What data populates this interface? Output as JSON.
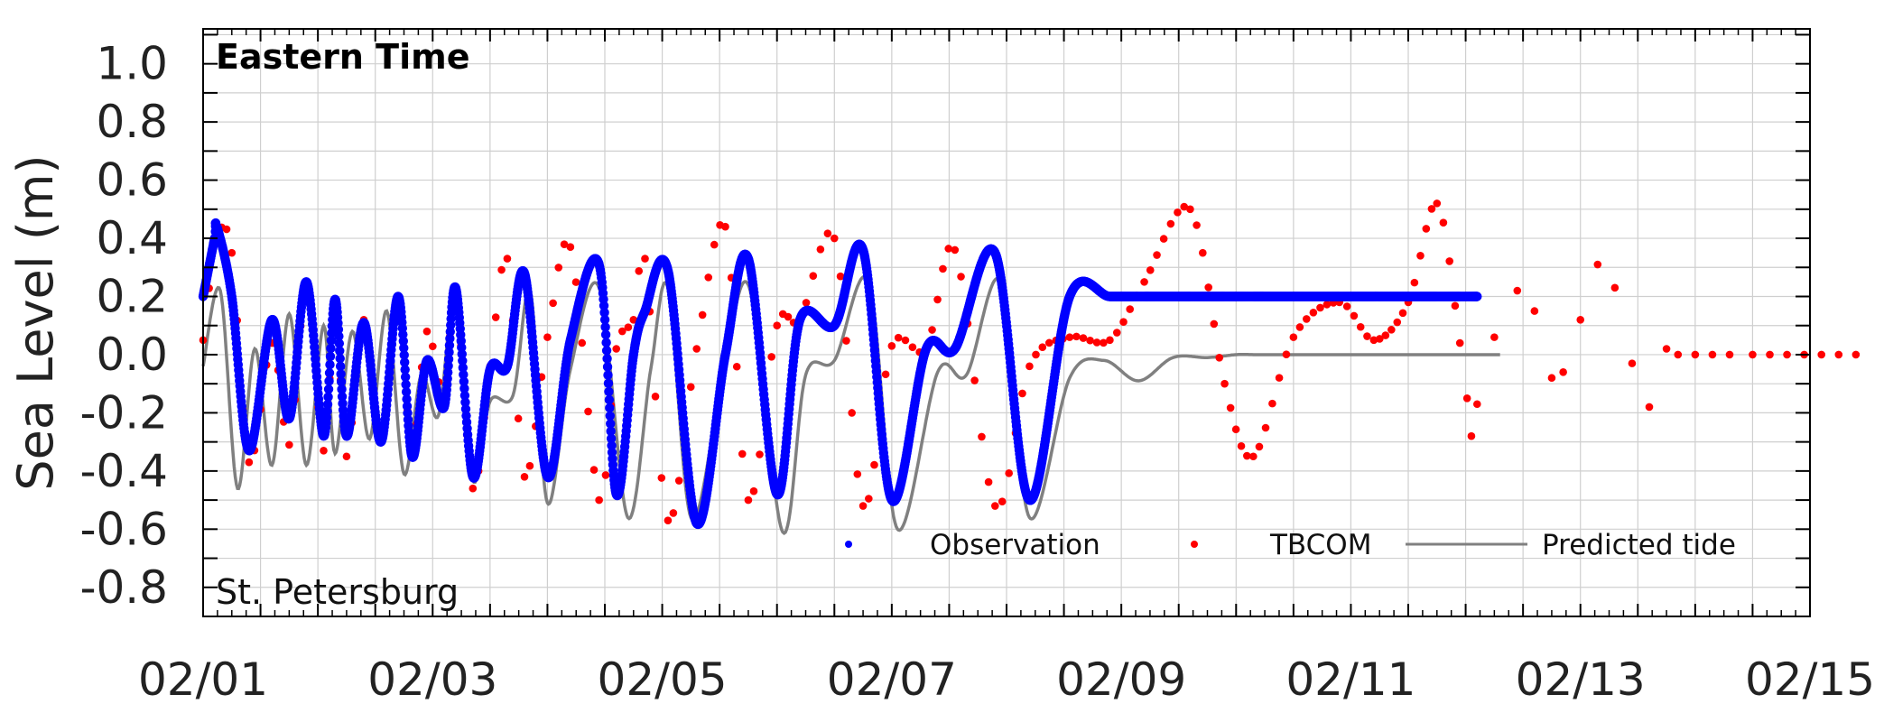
{
  "chart_data": {
    "type": "line",
    "title": "",
    "xlabel": "",
    "ylabel": "Sea Level (m)",
    "x_unit": "days since 02/01",
    "xlim": [
      0,
      14
    ],
    "ylim": [
      -0.9,
      1.12
    ],
    "grid": true,
    "x_tick_values": [
      0,
      2,
      4,
      6,
      8,
      10,
      12,
      14
    ],
    "x_tick_labels": [
      "02/01",
      "02/03",
      "02/05",
      "02/07",
      "02/09",
      "02/11",
      "02/13",
      "02/15"
    ],
    "y_tick_values": [
      -0.8,
      -0.6,
      -0.4,
      -0.2,
      0.0,
      0.2,
      0.4,
      0.6,
      0.8,
      1.0
    ],
    "y_tick_labels": [
      "-0.8",
      "-0.6",
      "-0.4",
      "-0.2",
      "0.0",
      "0.2",
      "0.4",
      "0.6",
      "0.8",
      "1.0"
    ],
    "annotations": {
      "top_left": "Eastern Time",
      "bottom_left": "St. Petersburg"
    },
    "legend": {
      "position": "lower-right",
      "entries": [
        "Observation",
        "TBCOM",
        "Predicted tide"
      ]
    },
    "series": [
      {
        "name": "Observation",
        "style": "dots",
        "color": "#0000ff",
        "x": [
          0.0,
          0.1,
          0.12,
          0.25,
          0.4,
          0.6,
          0.75,
          0.9,
          1.05,
          1.15,
          1.25,
          1.4,
          1.55,
          1.7,
          1.82,
          1.95,
          2.1,
          2.2,
          2.35,
          2.5,
          2.65,
          2.8,
          3.0,
          3.2,
          3.45,
          3.6,
          3.75,
          3.85,
          4.05,
          4.3,
          4.55,
          4.75,
          5.0,
          5.2,
          5.5,
          5.75,
          6.0,
          6.3,
          6.55,
          6.9,
          7.2,
          7.55,
          7.9,
          8.2,
          8.6,
          8.9,
          9.15,
          9.5,
          9.9,
          10.2,
          10.5,
          10.75,
          10.95,
          11.1
        ],
        "y": [
          0.2,
          0.4,
          0.44,
          0.2,
          -0.33,
          0.12,
          -0.22,
          0.25,
          -0.28,
          0.19,
          -0.28,
          0.11,
          -0.3,
          0.2,
          -0.35,
          -0.02,
          -0.18,
          0.23,
          -0.42,
          -0.05,
          -0.04,
          0.28,
          -0.42,
          0.05,
          0.31,
          -0.48,
          0.0,
          0.15,
          0.29,
          -0.58,
          0.0,
          0.33,
          -0.48,
          0.12,
          0.1,
          0.36,
          -0.5,
          0.02,
          0.02,
          0.35,
          -0.5,
          0.2,
          0.2,
          0.2,
          0.2,
          0.2,
          0.2,
          0.2,
          0.2,
          0.2,
          0.2,
          0.2,
          0.2,
          0.2
        ]
      },
      {
        "name": "TBCOM",
        "style": "dots",
        "color": "#ff0000",
        "x": [
          0.0,
          0.12,
          0.25,
          0.4,
          0.6,
          0.75,
          0.9,
          1.05,
          1.15,
          1.25,
          1.4,
          1.55,
          1.7,
          1.82,
          1.95,
          2.1,
          2.2,
          2.35,
          2.5,
          2.65,
          2.8,
          3.0,
          3.2,
          3.45,
          3.6,
          3.75,
          3.85,
          4.05,
          4.3,
          4.55,
          4.75,
          5.0,
          5.2,
          5.5,
          5.75,
          6.0,
          6.3,
          6.55,
          6.9,
          7.2,
          7.55,
          7.9,
          8.2,
          8.6,
          8.9,
          9.15,
          9.5,
          9.9,
          10.2,
          10.5,
          10.75,
          10.95,
          11.05,
          11.1,
          11.25,
          11.45,
          11.6,
          11.75,
          11.85,
          12.0,
          12.15,
          12.3,
          12.45,
          12.6,
          12.75,
          12.85,
          13.0,
          13.15,
          13.3,
          13.5,
          13.65,
          13.8,
          13.95,
          14.1,
          14.25,
          14.4
        ],
        "y": [
          0.05,
          0.4,
          0.35,
          -0.37,
          0.04,
          -0.31,
          0.23,
          -0.33,
          0.17,
          -0.35,
          0.12,
          -0.3,
          0.18,
          -0.33,
          0.08,
          -0.15,
          0.22,
          -0.46,
          -0.04,
          0.33,
          -0.42,
          0.06,
          0.37,
          -0.5,
          0.02,
          0.12,
          0.33,
          -0.57,
          0.02,
          0.44,
          -0.5,
          0.1,
          0.12,
          0.4,
          -0.52,
          0.03,
          0.02,
          0.36,
          -0.52,
          -0.04,
          0.06,
          0.05,
          0.25,
          0.5,
          -0.1,
          -0.35,
          0.06,
          0.18,
          0.05,
          0.18,
          0.52,
          0.04,
          -0.28,
          -0.17,
          0.06,
          0.22,
          0.15,
          -0.08,
          -0.06,
          0.12,
          0.31,
          0.23,
          -0.03,
          -0.18,
          0.02,
          0.0,
          0.0,
          0.0,
          0.0,
          0.0,
          0.0,
          0.0,
          0.0,
          0.0,
          0.0,
          0.0
        ]
      },
      {
        "name": "Predicted tide",
        "style": "line",
        "color": "#808080",
        "x": [
          0.0,
          0.15,
          0.3,
          0.45,
          0.6,
          0.75,
          0.9,
          1.05,
          1.15,
          1.3,
          1.45,
          1.6,
          1.75,
          1.9,
          2.05,
          2.2,
          2.35,
          2.5,
          2.7,
          2.85,
          3.0,
          3.2,
          3.45,
          3.7,
          3.9,
          4.05,
          4.25,
          4.5,
          4.75,
          5.05,
          5.25,
          5.5,
          5.8,
          6.05,
          6.4,
          6.65,
          6.95,
          7.2,
          7.55,
          7.85,
          8.15,
          8.45,
          8.75,
          9.0,
          9.15,
          9.35,
          9.55,
          9.8,
          10.0,
          10.25,
          10.45,
          10.75,
          11.0,
          11.1,
          11.2,
          11.3
        ],
        "y": [
          -0.04,
          0.22,
          -0.46,
          0.02,
          -0.38,
          0.14,
          -0.38,
          0.1,
          -0.34,
          0.08,
          -0.29,
          0.15,
          -0.41,
          -0.07,
          -0.21,
          0.22,
          -0.43,
          -0.16,
          -0.14,
          0.22,
          -0.51,
          -0.05,
          0.23,
          -0.56,
          -0.05,
          0.23,
          -0.56,
          -0.15,
          0.24,
          -0.61,
          -0.07,
          -0.02,
          0.25,
          -0.6,
          -0.06,
          -0.07,
          0.25,
          -0.56,
          -0.08,
          -0.02,
          -0.09,
          -0.01,
          -0.01,
          0.0,
          0.0,
          0.0,
          0.0,
          0.0,
          0.0,
          0.0,
          0.0,
          0.0,
          0.0,
          0.0,
          0.0,
          0.0
        ]
      }
    ]
  }
}
